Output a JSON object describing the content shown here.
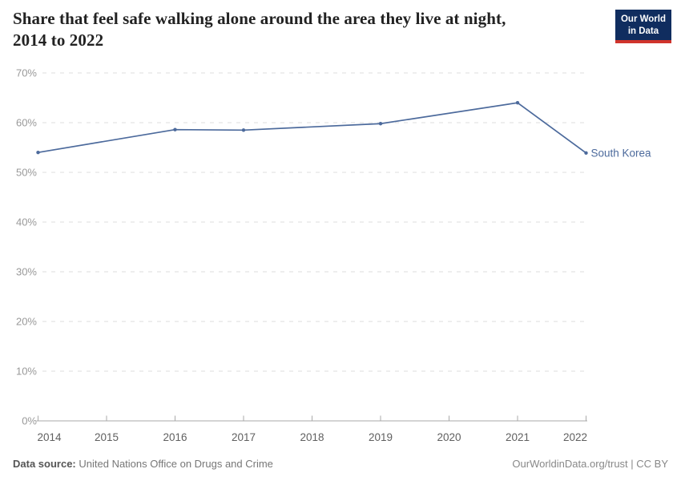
{
  "header": {
    "title": "Share that feel safe walking alone around the area they live at night,\n2014 to 2022",
    "logo": {
      "line1": "Our World",
      "line2": "in Data"
    }
  },
  "chart_data": {
    "type": "line",
    "title": "Share that feel safe walking alone around the area they live at night, 2014 to 2022",
    "x_range": [
      2014,
      2022
    ],
    "y_range": [
      0,
      70
    ],
    "x_ticks": [
      2014,
      2015,
      2016,
      2017,
      2018,
      2019,
      2020,
      2021,
      2022
    ],
    "y_ticks": [
      0,
      10,
      20,
      30,
      40,
      50,
      60,
      70
    ],
    "y_tick_suffix": "%",
    "grid": "horizontal-dashed",
    "legend_position": "end-of-line-label",
    "series": [
      {
        "name": "South Korea",
        "color": "#4c6a9c",
        "points": [
          {
            "year": 2014,
            "value": 54.0
          },
          {
            "year": 2016,
            "value": 58.6
          },
          {
            "year": 2017,
            "value": 58.5
          },
          {
            "year": 2019,
            "value": 59.8
          },
          {
            "year": 2021,
            "value": 64.0
          },
          {
            "year": 2022,
            "value": 53.9
          }
        ]
      }
    ]
  },
  "footer": {
    "datasource_label": "Data source:",
    "datasource_value": "United Nations Office on Drugs and Crime",
    "credit": "OurWorldinData.org/trust | CC BY"
  },
  "colors": {
    "line": "#4c6a9c",
    "grid": "#dddddd",
    "axis": "#a9a9a9",
    "y_label": "#999999",
    "x_label": "#606060",
    "title": "#222222",
    "logo_bg": "#102d5f",
    "logo_stripe": "#d0342c"
  }
}
